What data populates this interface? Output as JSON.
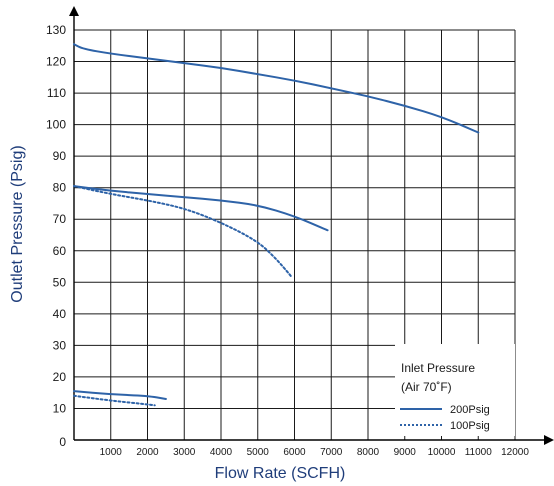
{
  "chart_data": {
    "type": "line",
    "xlabel": "Flow Rate (SCFH)",
    "ylabel": "Outlet Pressure (Psig)",
    "xlim": [
      0,
      12000
    ],
    "ylim": [
      0,
      130
    ],
    "x_ticks": [
      1000,
      2000,
      3000,
      4000,
      5000,
      6000,
      7000,
      8000,
      9000,
      10000,
      11000,
      12000
    ],
    "y_ticks": [
      0,
      10,
      20,
      30,
      40,
      50,
      60,
      70,
      80,
      90,
      100,
      110,
      120,
      130
    ],
    "grid": true,
    "legend": {
      "title_line1": "Inlet Pressure",
      "title_line2": "(Air 70˚F)",
      "placement": "bottom-right",
      "entries": [
        "200Psig",
        "100Psig"
      ]
    },
    "colors": {
      "line": "#2e63a8",
      "grid": "#1a1a1a",
      "axis": "#000000",
      "title": "#1f3d7a"
    },
    "series": [
      {
        "name": "200Psig",
        "style": "solid",
        "curve": "high-setting",
        "points": [
          [
            0,
            125.5
          ],
          [
            250,
            124
          ],
          [
            1000,
            122.5
          ],
          [
            2000,
            121
          ],
          [
            3000,
            119.5
          ],
          [
            4000,
            118
          ],
          [
            5000,
            116
          ],
          [
            6000,
            114
          ],
          [
            7000,
            111.5
          ],
          [
            8000,
            109
          ],
          [
            9000,
            106
          ],
          [
            10000,
            102.5
          ],
          [
            11000,
            97.5
          ]
        ]
      },
      {
        "name": "200Psig",
        "style": "solid",
        "curve": "mid-setting",
        "points": [
          [
            0,
            80.5
          ],
          [
            1000,
            79
          ],
          [
            2000,
            78
          ],
          [
            3000,
            77
          ],
          [
            4000,
            76
          ],
          [
            5000,
            74.5
          ],
          [
            6000,
            71
          ],
          [
            6900,
            66.5
          ]
        ]
      },
      {
        "name": "100Psig",
        "style": "dotted",
        "curve": "mid-setting",
        "points": [
          [
            0,
            80.5
          ],
          [
            1000,
            78
          ],
          [
            2000,
            76
          ],
          [
            3000,
            73.5
          ],
          [
            4000,
            69
          ],
          [
            5000,
            63
          ],
          [
            5500,
            57.5
          ],
          [
            5900,
            52
          ]
        ]
      },
      {
        "name": "200Psig",
        "style": "solid",
        "curve": "low-setting",
        "points": [
          [
            0,
            15.5
          ],
          [
            1000,
            14.5
          ],
          [
            2000,
            14
          ],
          [
            2500,
            13
          ]
        ]
      },
      {
        "name": "100Psig",
        "style": "dotted",
        "curve": "low-setting",
        "points": [
          [
            0,
            14
          ],
          [
            1000,
            12.5
          ],
          [
            2200,
            11
          ]
        ]
      }
    ]
  }
}
